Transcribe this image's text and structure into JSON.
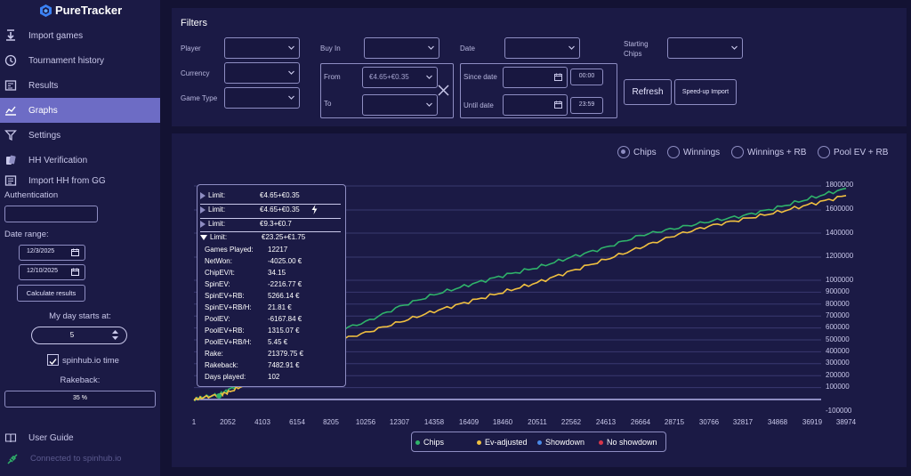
{
  "app": {
    "name": "PureTracker"
  },
  "sidebar": {
    "items": [
      {
        "label": "Import games",
        "icon": "download-icon"
      },
      {
        "label": "Tournament history",
        "icon": "history-icon"
      },
      {
        "label": "Results",
        "icon": "results-icon"
      },
      {
        "label": "Graphs",
        "icon": "graph-icon",
        "active": true
      },
      {
        "label": "Settings",
        "icon": "filter-icon"
      },
      {
        "label": "HH Verification",
        "icon": "cards-icon"
      },
      {
        "label": "Import HH from GG",
        "icon": "import-hh-icon"
      }
    ],
    "authentication_label": "Authentication",
    "auth_value": "",
    "date_range_label": "Date range:",
    "date_from": "12/3/2025",
    "date_to": "12/10/2025",
    "calculate_label": "Calculate results",
    "day_starts_label": "My day starts at:",
    "day_starts_value": "5",
    "spinhub_time_label": "spinhub.io time",
    "rakeback_label": "Rakeback:",
    "rakeback_value": "35 %",
    "user_guide_label": "User Guide",
    "connected_label": "Connected to spinhub.io"
  },
  "filters": {
    "title": "Filters",
    "player_label": "Player",
    "currency_label": "Currency",
    "game_type_label": "Game Type",
    "buy_in_label": "Buy In",
    "from_label": "From",
    "from_value": "€4.65+€0.35",
    "to_label": "To",
    "date_label": "Date",
    "since_label": "Since date",
    "until_label": "Until date",
    "since_time": "00:00",
    "until_time": "23:59",
    "starting_chips_label": "Starting Chips",
    "refresh_label": "Refresh",
    "speedup_label": "Speed-up Import"
  },
  "graph": {
    "modes": [
      "Chips",
      "Winnings",
      "Winnings + RB",
      "Pool EV + RB"
    ],
    "selected_mode": "Chips",
    "tooltip": {
      "limits": [
        {
          "label": "Limit:",
          "value": "€4.65+€0.35",
          "expanded": false
        },
        {
          "label": "Limit:",
          "value": "€4.65+€0.35",
          "expanded": false,
          "bolt": true
        },
        {
          "label": "Limit:",
          "value": "€9.3+€0.7",
          "expanded": false
        },
        {
          "label": "Limit:",
          "value": "€23.25+€1.75",
          "expanded": true
        }
      ],
      "stats": [
        {
          "k": "Games Played:",
          "v": "12217"
        },
        {
          "k": "NetWon:",
          "v": "-4025.00 €"
        },
        {
          "k": "ChipEV/t:",
          "v": "34.15"
        },
        {
          "k": "SpinEV:",
          "v": "-2216.77 €"
        },
        {
          "k": "SpinEV+RB:",
          "v": "5266.14 €"
        },
        {
          "k": "SpinEV+RB/H:",
          "v": "21.81 €"
        },
        {
          "k": "PoolEV:",
          "v": "-6167.84 €"
        },
        {
          "k": "PoolEV+RB:",
          "v": "1315.07 €"
        },
        {
          "k": "PoolEV+RB/H:",
          "v": "5.45 €"
        },
        {
          "k": "Rake:",
          "v": "21379.75 €"
        },
        {
          "k": "Rakeback:",
          "v": "7482.91 €"
        },
        {
          "k": "Days played:",
          "v": "102"
        }
      ]
    },
    "legend": [
      {
        "name": "Chips",
        "color": "#2fb36a"
      },
      {
        "name": "Ev-adjusted",
        "color": "#f0c040"
      },
      {
        "name": "Showdown",
        "color": "#4a8ae8"
      },
      {
        "name": "No showdown",
        "color": "#d9364a"
      }
    ]
  },
  "chart_data": {
    "type": "line",
    "x_ticks": [
      "1",
      "2052",
      "4103",
      "6154",
      "8205",
      "10256",
      "12307",
      "14358",
      "16409",
      "18460",
      "20511",
      "22562",
      "24613",
      "26664",
      "28715",
      "30766",
      "32817",
      "34868",
      "36919",
      "38974"
    ],
    "y_ticks": [
      "1800000",
      "1600000",
      "1400000",
      "1200000",
      "1000000",
      "900000",
      "800000",
      "700000",
      "600000",
      "500000",
      "400000",
      "300000",
      "200000",
      "100000",
      "-100000"
    ],
    "xlim": [
      1,
      38974
    ],
    "ylim": [
      -100000,
      1800000
    ],
    "grid": true,
    "series": [
      {
        "name": "Chips",
        "color": "#2fb36a",
        "x": [
          1,
          500,
          1500,
          2052,
          3000,
          4103,
          5000,
          6154,
          7000,
          8205,
          10256,
          12307,
          14358,
          16409,
          18460,
          20511,
          22562,
          24613,
          26664,
          28715,
          30766,
          32817,
          34868,
          36919,
          38974
        ],
        "y": [
          0,
          20000,
          40000,
          80000,
          150000,
          260000,
          360000,
          450000,
          520000,
          560000,
          650000,
          780000,
          880000,
          960000,
          1040000,
          1110000,
          1200000,
          1280000,
          1380000,
          1440000,
          1500000,
          1550000,
          1620000,
          1700000,
          1780000
        ]
      },
      {
        "name": "Ev-adjusted",
        "color": "#f0c040",
        "x": [
          1,
          500,
          1500,
          2052,
          3000,
          4103,
          5000,
          6154,
          7000,
          8205,
          10256,
          12307,
          14358,
          16409,
          18460,
          20511,
          22562,
          24613,
          26664,
          28715,
          30766,
          32817,
          34868,
          36919,
          38974
        ],
        "y": [
          0,
          15000,
          40000,
          60000,
          120000,
          200000,
          280000,
          380000,
          440000,
          480000,
          560000,
          650000,
          740000,
          820000,
          900000,
          980000,
          1080000,
          1180000,
          1280000,
          1380000,
          1460000,
          1520000,
          1580000,
          1650000,
          1720000
        ]
      }
    ]
  }
}
